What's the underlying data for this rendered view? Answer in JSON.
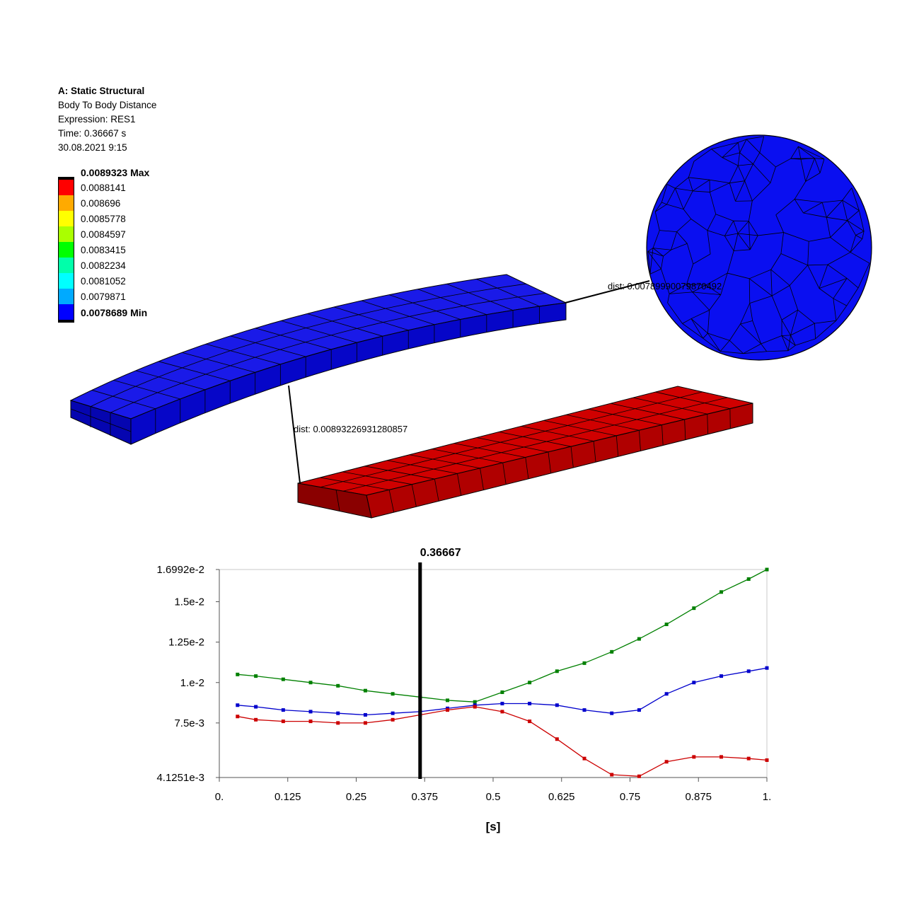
{
  "info": {
    "title": "A: Static Structural",
    "result": "Body To Body Distance",
    "expression": "Expression: RES1",
    "time": "Time: 0.36667 s",
    "date": "30.08.2021 9:15"
  },
  "legend": {
    "entries": [
      {
        "label": "0.0089323 Max",
        "bold": true
      },
      {
        "label": "0.0088141"
      },
      {
        "label": "0.008696"
      },
      {
        "label": "0.0085778"
      },
      {
        "label": "0.0084597"
      },
      {
        "label": "0.0083415"
      },
      {
        "label": "0.0082234"
      },
      {
        "label": "0.0081052"
      },
      {
        "label": "0.0079871"
      },
      {
        "label": "0.0078689 Min",
        "bold": true
      }
    ],
    "colors": [
      "#ff0000",
      "#ffaa00",
      "#ffff00",
      "#aaff00",
      "#00ff00",
      "#00ffaa",
      "#00ffff",
      "#00aaff",
      "#0000ff"
    ]
  },
  "scene": {
    "probe_labels": [
      "dist: 0.00789990079870492",
      "dist: 0.00893226931280857"
    ],
    "colors": {
      "blue": "#0a0ff0",
      "blue_side": "#0808c8",
      "red": "#c80000",
      "red_side": "#a40000",
      "edge": "#000000"
    }
  },
  "chart_data": {
    "type": "line",
    "marker_label": "0.36667",
    "marker_x": 0.36667,
    "xlabel": "[s]",
    "xlim": [
      0,
      1
    ],
    "ylim": [
      0.0041251,
      0.016992
    ],
    "x_ticks": [
      {
        "v": 0,
        "label": "0."
      },
      {
        "v": 0.125,
        "label": "0.125"
      },
      {
        "v": 0.25,
        "label": "0.25"
      },
      {
        "v": 0.375,
        "label": "0.375"
      },
      {
        "v": 0.5,
        "label": "0.5"
      },
      {
        "v": 0.625,
        "label": "0.625"
      },
      {
        "v": 0.75,
        "label": "0.75"
      },
      {
        "v": 0.875,
        "label": "0.875"
      },
      {
        "v": 1,
        "label": "1."
      }
    ],
    "y_ticks": [
      {
        "v": 0.016992,
        "label": "1.6992e-2"
      },
      {
        "v": 0.015,
        "label": "1.5e-2"
      },
      {
        "v": 0.0125,
        "label": "1.25e-2"
      },
      {
        "v": 0.01,
        "label": "1.e-2"
      },
      {
        "v": 0.0075,
        "label": "7.5e-3"
      },
      {
        "v": 0.0041251,
        "label": "4.1251e-3"
      }
    ],
    "x": [
      0.0333,
      0.0667,
      0.1167,
      0.1667,
      0.2167,
      0.2667,
      0.3167,
      0.3667,
      0.4167,
      0.4667,
      0.5167,
      0.5667,
      0.6167,
      0.6667,
      0.7167,
      0.7667,
      0.8167,
      0.8667,
      0.9167,
      0.9667,
      1.0
    ],
    "series": [
      {
        "color": "#008000",
        "values": [
          0.0105,
          0.0104,
          0.0102,
          0.01,
          0.0098,
          0.0095,
          0.0093,
          0.0091,
          0.0089,
          0.0088,
          0.0094,
          0.01,
          0.0107,
          0.0112,
          0.0119,
          0.0127,
          0.0136,
          0.0146,
          0.0156,
          0.0164,
          0.01699
        ]
      },
      {
        "color": "#0000cc",
        "values": [
          0.0086,
          0.0085,
          0.0083,
          0.0082,
          0.0081,
          0.008,
          0.0081,
          0.0082,
          0.0084,
          0.0086,
          0.0087,
          0.0087,
          0.0086,
          0.0083,
          0.0081,
          0.0083,
          0.0093,
          0.01,
          0.0104,
          0.0107,
          0.0109
        ]
      },
      {
        "color": "#cc0000",
        "values": [
          0.0079,
          0.0077,
          0.0076,
          0.0076,
          0.0075,
          0.0075,
          0.0077,
          0.008,
          0.0083,
          0.0085,
          0.0082,
          0.0076,
          0.0065,
          0.0053,
          0.0043,
          0.0042,
          0.0051,
          0.0054,
          0.0054,
          0.0053,
          0.0052
        ]
      }
    ]
  }
}
